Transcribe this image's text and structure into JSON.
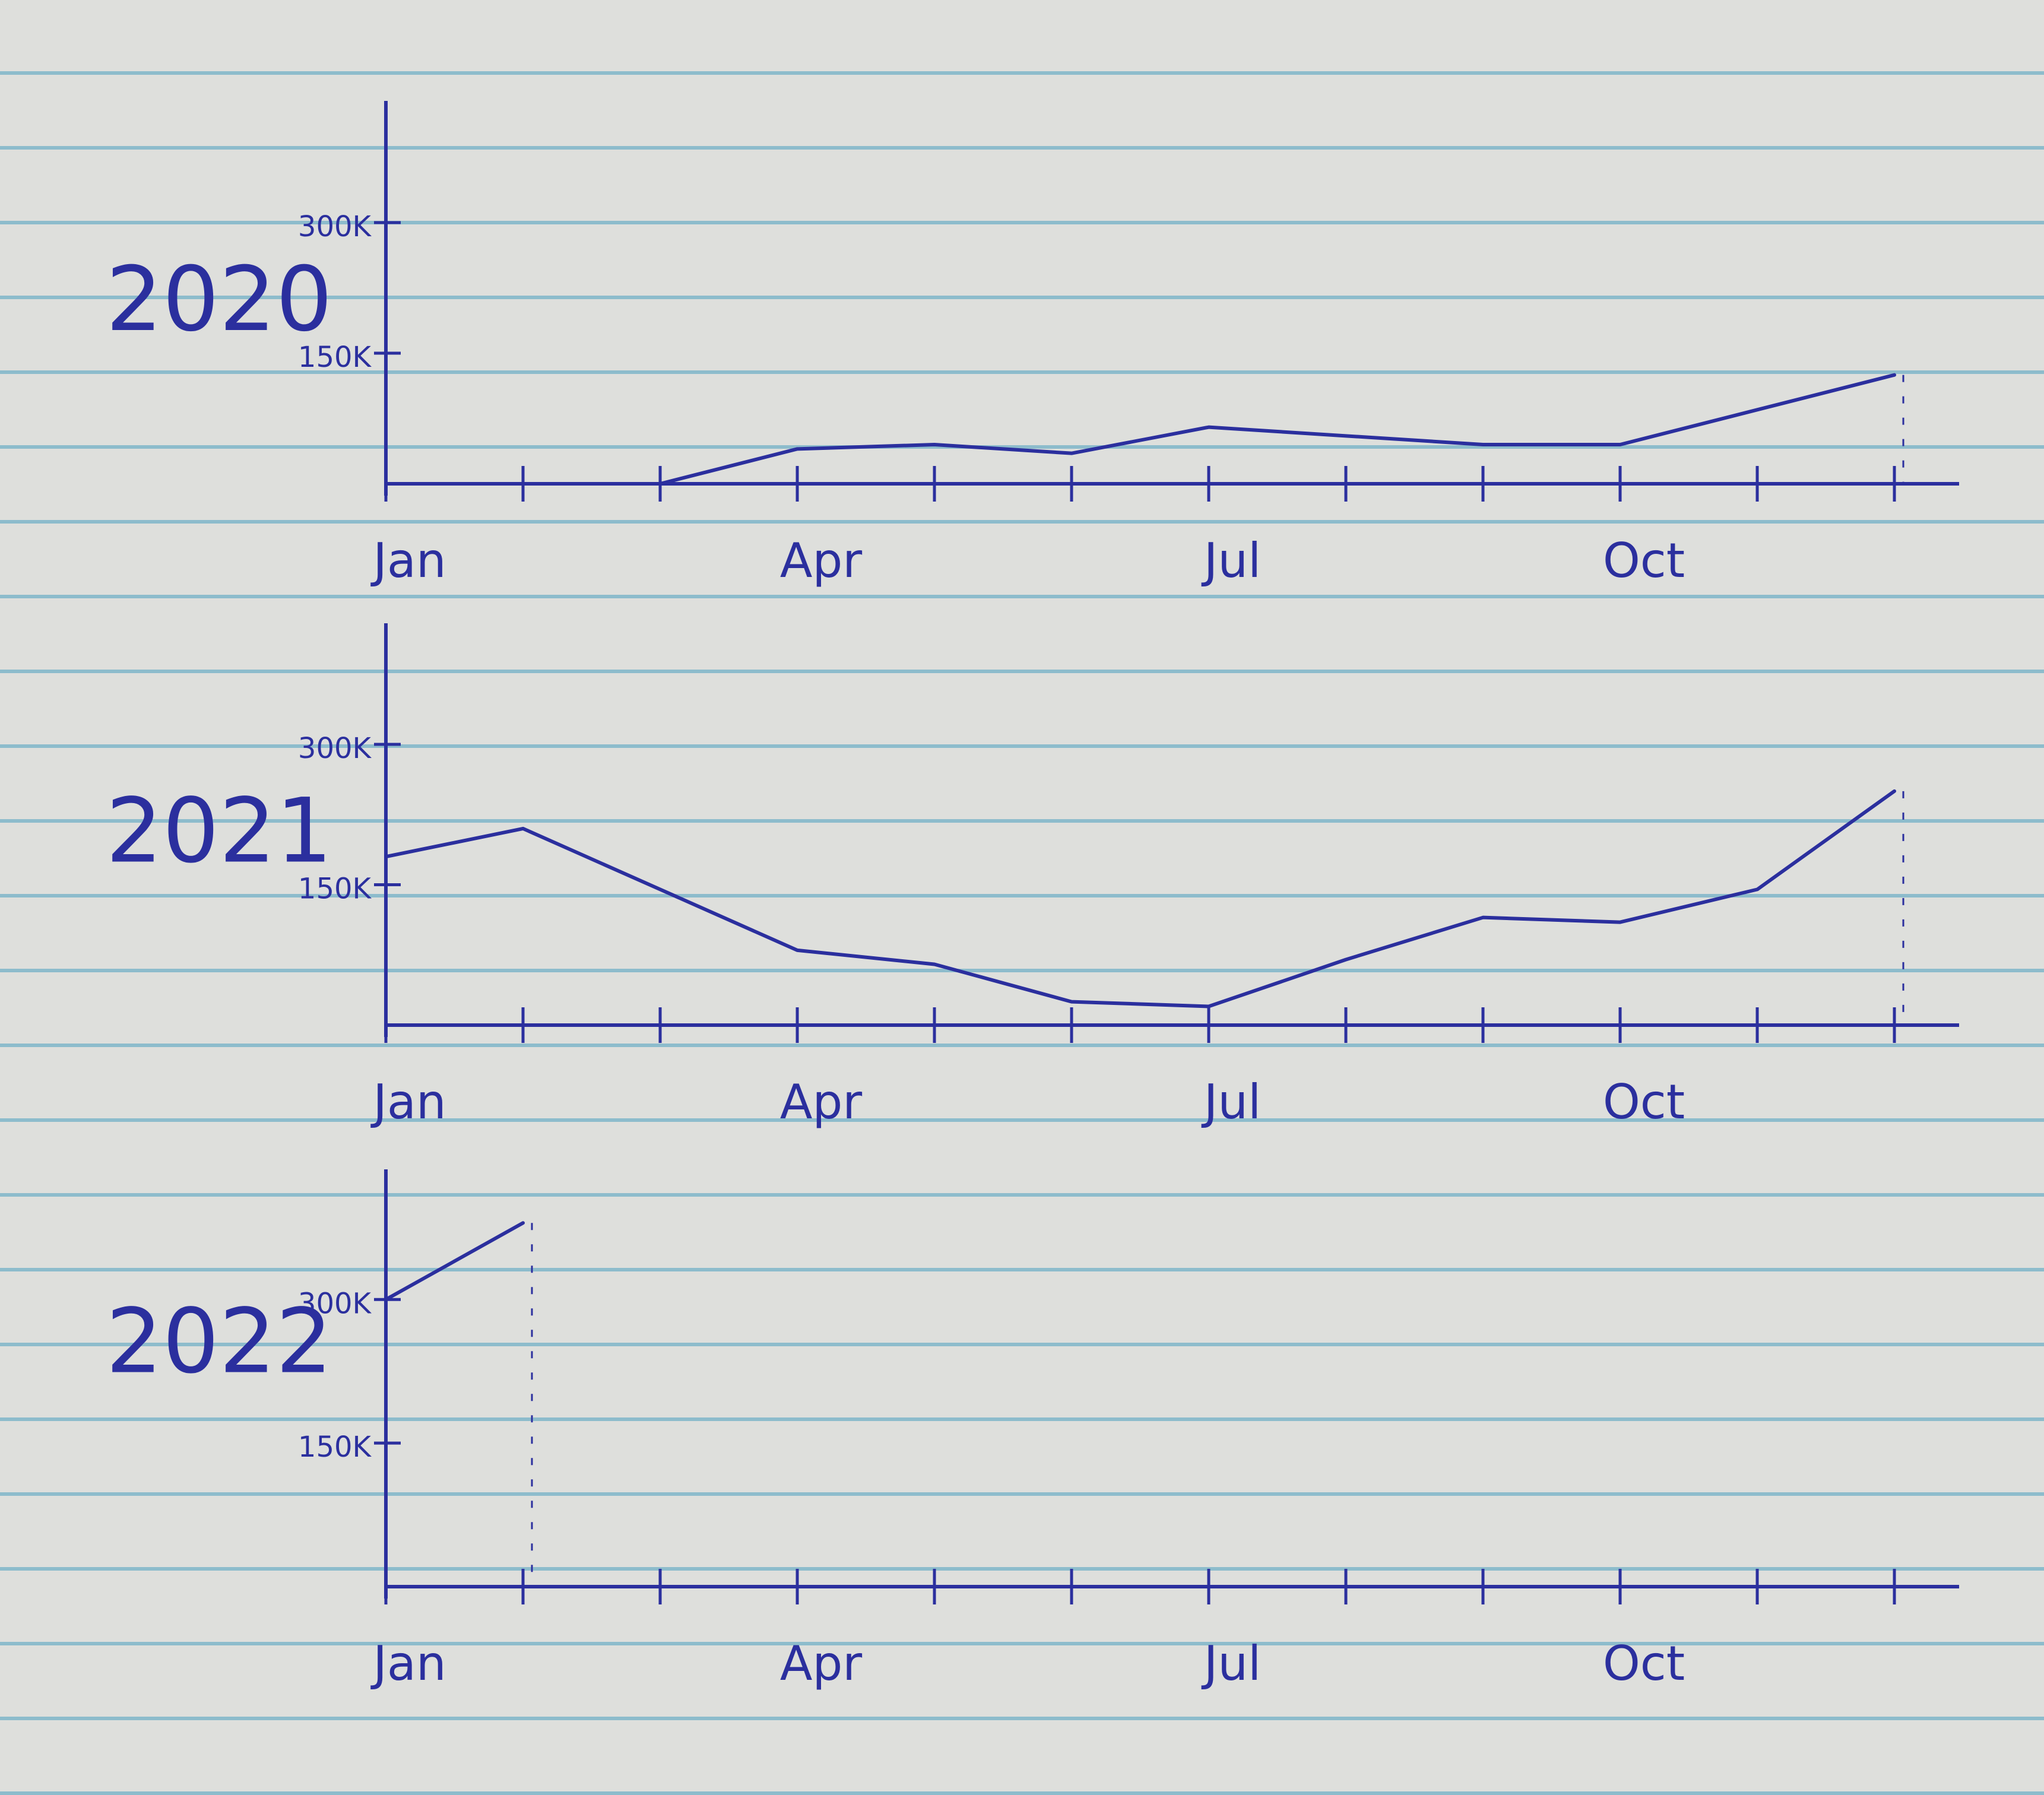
{
  "chart_data": [
    {
      "type": "line",
      "title": "2020",
      "color": "#2b2f9e",
      "categories": [
        "Jan",
        null,
        null,
        "Apr",
        null,
        null,
        "Jul",
        null,
        null,
        "Oct",
        null,
        null
      ],
      "values": [
        0,
        0,
        0,
        40000,
        45000,
        35000,
        65000,
        55000,
        45000,
        45000,
        85000,
        125000
      ],
      "ylim": [
        0,
        300000
      ],
      "yticks": [
        {
          "value": 150000,
          "label": "150K"
        },
        {
          "value": 300000,
          "label": "300K"
        }
      ]
    },
    {
      "type": "line",
      "title": "2021",
      "color": "#2b2f9e",
      "categories": [
        "Jan",
        null,
        null,
        "Apr",
        null,
        null,
        "Jul",
        null,
        null,
        "Oct",
        null,
        null
      ],
      "values": [
        180000,
        210000,
        145000,
        80000,
        65000,
        25000,
        20000,
        70000,
        115000,
        110000,
        145000,
        250000
      ],
      "ylim": [
        0,
        300000
      ],
      "yticks": [
        {
          "value": 150000,
          "label": "150K"
        },
        {
          "value": 300000,
          "label": "300K"
        }
      ]
    },
    {
      "type": "line",
      "title": "2022",
      "color": "#2b2f9e",
      "categories": [
        "Jan",
        null,
        null,
        "Apr",
        null,
        null,
        "Jul",
        null,
        null,
        "Oct",
        null,
        null
      ],
      "values": [
        300000,
        380000,
        null,
        null,
        null,
        null,
        null,
        null,
        null,
        null,
        null,
        null
      ],
      "ylim": [
        0,
        400000
      ],
      "yticks": [
        {
          "value": 150000,
          "label": "150K"
        },
        {
          "value": 300000,
          "label": "300K"
        }
      ]
    }
  ]
}
